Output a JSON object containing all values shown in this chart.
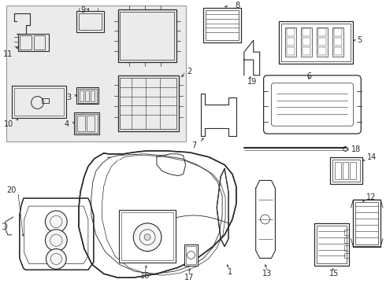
{
  "bg_color": "#ffffff",
  "line_color": "#2a2a2a",
  "label_color": "#1a1a1a",
  "inset_bg": "#ebebeb",
  "figsize": [
    4.9,
    3.6
  ],
  "dpi": 100
}
